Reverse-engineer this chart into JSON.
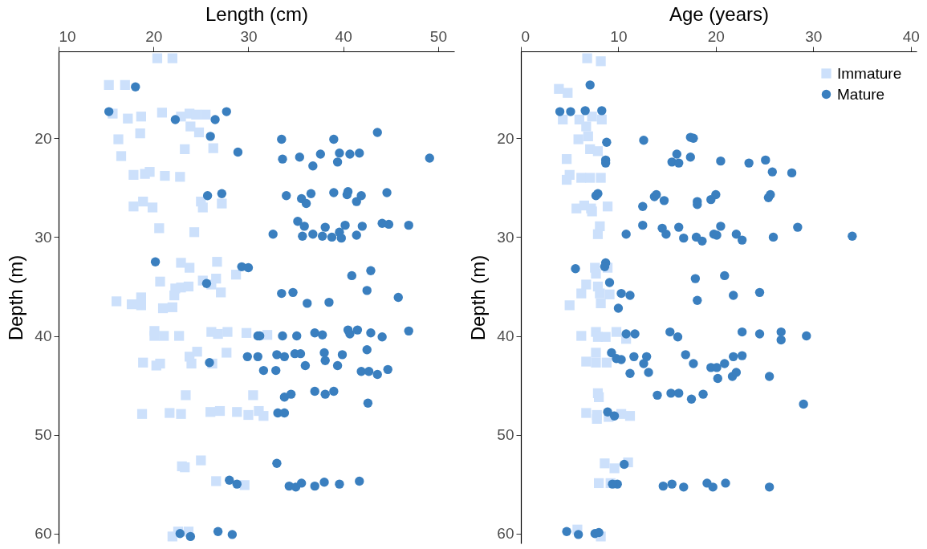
{
  "chart_data": [
    {
      "type": "scatter",
      "xlabel": "Length (cm)",
      "ylabel": "Depth (m)",
      "xlim": [
        10,
        51.7
      ],
      "xticks": [
        10,
        20,
        30,
        40,
        50
      ],
      "ylim": [
        61,
        11.2
      ],
      "yticks": [
        20,
        30,
        40,
        50,
        60
      ],
      "grid": false,
      "series": [
        {
          "color": "#cce0fb",
          "marker": "square",
          "x": [
            20.4,
            22.0,
            15.3,
            17.0,
            15.7,
            17.3,
            18.7,
            20.9,
            22.9,
            23.8,
            24.5,
            25.5,
            16.3,
            18.6,
            23.9,
            24.8,
            16.6,
            23.3,
            26.3,
            17.9,
            19.1,
            19.6,
            21.2,
            22.8,
            17.9,
            18.9,
            19.9,
            25.0,
            25.2,
            27.2,
            20.6,
            24.3,
            22.9,
            23.8,
            26.7,
            28.7,
            20.7,
            25.2,
            26.6,
            26.1,
            27.1,
            22.3,
            22.9,
            23.7,
            22.2,
            16.1,
            17.7,
            18.7,
            18.7,
            21.0,
            22.0,
            20.1,
            20.1,
            21.1,
            22.7,
            26.1,
            26.8,
            27.8,
            29.8,
            32.0,
            18.9,
            20.3,
            20.7,
            23.8,
            24.6,
            24.0,
            27.7,
            26.2,
            23.4,
            30.5,
            18.8,
            21.7,
            22.9,
            26.0,
            27.0,
            28.8,
            30.0,
            31.1,
            31.6,
            25.0,
            23.0,
            23.3,
            26.6,
            29.6,
            22.6,
            23.7,
            22.0
          ],
          "values": [
            11.9,
            11.9,
            14.6,
            14.6,
            17.5,
            18.0,
            17.8,
            17.4,
            17.8,
            17.5,
            17.6,
            17.6,
            20.1,
            19.5,
            18.8,
            19.4,
            21.8,
            21.1,
            21.0,
            23.7,
            23.6,
            23.4,
            23.8,
            23.9,
            26.9,
            26.4,
            27.0,
            26.4,
            27.0,
            26.6,
            29.1,
            29.5,
            32.6,
            33.1,
            32.5,
            33.8,
            34.5,
            34.4,
            34.2,
            34.8,
            35.6,
            35.2,
            35.1,
            35.0,
            35.9,
            36.5,
            36.8,
            36.1,
            36.9,
            37.2,
            37.1,
            39.5,
            40.0,
            40.0,
            40.0,
            39.6,
            39.8,
            39.6,
            39.7,
            39.9,
            42.7,
            43.0,
            42.8,
            42.1,
            41.6,
            42.8,
            41.7,
            42.8,
            46.0,
            46.0,
            47.9,
            47.8,
            47.9,
            47.7,
            47.6,
            47.7,
            48.0,
            47.6,
            48.1,
            52.6,
            53.2,
            53.3,
            54.7,
            55.1,
            59.8,
            59.8,
            60.3
          ]
        },
        {
          "color": "#3a7fbf",
          "marker": "circle",
          "x": [
            18.1,
            15.3,
            22.3,
            26.5,
            27.7,
            26.0,
            33.5,
            39.0,
            43.6,
            28.9,
            33.6,
            35.4,
            37.6,
            36.8,
            39.6,
            39.4,
            40.7,
            41.7,
            49.1,
            25.7,
            27.2,
            34.0,
            35.6,
            36.6,
            36.1,
            39.0,
            40.5,
            40.4,
            41.9,
            41.4,
            44.6,
            35.2,
            35.9,
            38.1,
            40.2,
            42.0,
            44.1,
            44.8,
            46.9,
            32.6,
            35.7,
            36.8,
            37.8,
            38.8,
            39.6,
            39.8,
            41.4,
            20.2,
            29.3,
            30.0,
            25.6,
            40.9,
            42.9,
            42.5,
            45.8,
            33.5,
            34.7,
            36.2,
            38.5,
            31.0,
            31.2,
            33.6,
            35.1,
            37.0,
            37.8,
            40.5,
            40.7,
            41.5,
            42.9,
            44.1,
            46.9,
            25.9,
            29.9,
            31.0,
            33.0,
            33.8,
            34.9,
            35.5,
            38.0,
            39.9,
            42.5,
            36.0,
            38.1,
            39.4,
            31.6,
            32.9,
            41.9,
            42.7,
            43.6,
            44.7,
            33.8,
            34.5,
            37.0,
            38.1,
            39.0,
            42.6,
            33.1,
            33.8,
            33.0,
            28.0,
            28.8,
            34.3,
            35.0,
            35.6,
            37.0,
            38.0,
            39.6,
            41.7,
            22.8,
            23.9,
            26.8,
            28.3
          ],
          "values": [
            14.8,
            17.3,
            18.1,
            18.1,
            17.3,
            19.8,
            20.1,
            20.1,
            19.4,
            21.4,
            22.1,
            21.9,
            21.6,
            22.8,
            21.5,
            22.4,
            21.6,
            21.5,
            22.0,
            25.8,
            25.6,
            25.8,
            26.1,
            25.6,
            26.6,
            25.5,
            25.4,
            25.7,
            25.8,
            26.4,
            25.5,
            28.4,
            28.9,
            29.0,
            28.8,
            28.9,
            28.6,
            28.7,
            28.8,
            29.7,
            29.9,
            29.7,
            29.9,
            30.0,
            29.5,
            30.1,
            29.8,
            32.5,
            33.0,
            33.1,
            34.7,
            33.9,
            33.4,
            35.4,
            36.1,
            35.7,
            35.6,
            36.7,
            36.6,
            40.0,
            40.0,
            40.0,
            40.0,
            39.7,
            39.9,
            39.4,
            39.8,
            39.4,
            39.7,
            40.1,
            39.5,
            42.7,
            42.1,
            42.1,
            41.9,
            42.1,
            41.8,
            41.8,
            41.7,
            41.9,
            41.4,
            43.0,
            42.5,
            43.0,
            43.5,
            43.5,
            43.6,
            43.6,
            43.9,
            43.4,
            46.2,
            45.9,
            45.6,
            45.9,
            45.6,
            46.8,
            47.8,
            47.8,
            52.9,
            54.6,
            55.0,
            55.2,
            55.3,
            54.9,
            55.2,
            54.8,
            55.0,
            54.7,
            60.0,
            60.3,
            59.8,
            60.1
          ]
        }
      ]
    },
    {
      "type": "scatter",
      "xlabel": "Age (years)",
      "ylabel": "Depth (m)",
      "xlim": [
        0,
        40.6
      ],
      "xticks": [
        0,
        10,
        20,
        30,
        40
      ],
      "ylim": [
        61,
        11.2
      ],
      "yticks": [
        20,
        30,
        40,
        50,
        60
      ],
      "grid": false,
      "legend": "top right",
      "series": [
        {
          "name": "Immature",
          "color": "#cce0fb",
          "marker": "square",
          "x": [
            6.8,
            8.2,
            3.9,
            4.8,
            4.3,
            6.0,
            6.7,
            7.3,
            8.3,
            5.9,
            6.9,
            7.1,
            7.9,
            4.7,
            5.0,
            4.7,
            6.2,
            7.1,
            8.2,
            5.7,
            6.5,
            7.2,
            8.9,
            7.3,
            8.1,
            7.9,
            7.6,
            7.7,
            8.9,
            6.7,
            6.2,
            7.9,
            8.1,
            9.1,
            5.0,
            8.2,
            6.2,
            7.7,
            7.9,
            8.7,
            9.8,
            10.8,
            6.7,
            7.7,
            7.7,
            8.8,
            7.9,
            8.0,
            6.7,
            7.8,
            7.8,
            9.0,
            10.3,
            11.2,
            8.6,
            9.6,
            11.0,
            8.0,
            9.2,
            5.8,
            8.2
          ],
          "values": [
            11.9,
            12.2,
            15.0,
            15.4,
            18.1,
            18.1,
            18.8,
            17.8,
            18.1,
            20.1,
            19.8,
            21.1,
            21.3,
            22.1,
            23.7,
            24.2,
            24.0,
            24.0,
            24.0,
            27.1,
            26.8,
            27.1,
            26.9,
            27.4,
            28.9,
            29.7,
            33.1,
            33.7,
            33.1,
            34.8,
            35.7,
            35.0,
            35.7,
            35.8,
            36.9,
            36.7,
            40.0,
            39.6,
            40.1,
            40.1,
            39.6,
            40.3,
            42.6,
            41.7,
            42.7,
            42.7,
            45.8,
            46.2,
            47.8,
            48.0,
            48.4,
            48.2,
            47.9,
            48.1,
            52.9,
            53.4,
            52.8,
            54.9,
            54.9,
            59.6,
            60.3
          ]
        },
        {
          "name": "Mature",
          "color": "#3a7fbf",
          "marker": "circle",
          "x": [
            7.1,
            4.0,
            5.1,
            6.6,
            8.3,
            8.8,
            12.6,
            17.4,
            17.7,
            8.7,
            8.7,
            16.0,
            15.5,
            16.2,
            17.4,
            20.5,
            23.4,
            25.1,
            25.8,
            27.8,
            7.9,
            7.7,
            12.5,
            13.7,
            13.9,
            14.7,
            18.1,
            18.1,
            19.5,
            20.0,
            25.4,
            25.6,
            10.8,
            12.5,
            14.5,
            14.9,
            16.2,
            16.7,
            18.0,
            18.6,
            19.8,
            20.5,
            20.1,
            22.1,
            22.7,
            25.9,
            28.4,
            34.0,
            8.7,
            8.6,
            5.6,
            9.1,
            10.3,
            11.2,
            10.0,
            17.9,
            20.9,
            18.1,
            21.8,
            24.5,
            10.8,
            11.7,
            15.3,
            16.1,
            22.7,
            24.5,
            26.7,
            26.7,
            29.3,
            9.3,
            9.8,
            10.3,
            11.6,
            12.9,
            12.6,
            16.9,
            17.7,
            19.5,
            20.1,
            20.9,
            21.8,
            22.7,
            11.2,
            13.1,
            25.5,
            20.2,
            21.7,
            22.1,
            14.0,
            15.4,
            16.2,
            17.5,
            18.7,
            29.0,
            8.9,
            9.6,
            10.6,
            9.9,
            9.4,
            14.6,
            15.5,
            16.7,
            19.1,
            19.7,
            21.0,
            25.5,
            4.7,
            5.9,
            7.6,
            8.0
          ],
          "values": [
            14.6,
            17.3,
            17.3,
            17.2,
            17.2,
            20.4,
            20.2,
            19.9,
            20.0,
            22.2,
            22.5,
            21.6,
            22.4,
            22.5,
            21.9,
            22.3,
            22.5,
            22.2,
            23.4,
            23.5,
            25.6,
            25.8,
            26.9,
            25.9,
            25.7,
            26.3,
            26.4,
            26.7,
            26.2,
            25.7,
            26.0,
            25.7,
            29.7,
            28.8,
            29.1,
            29.7,
            29.0,
            30.1,
            30.0,
            30.4,
            29.7,
            28.9,
            29.8,
            29.7,
            30.3,
            30.0,
            29.0,
            29.9,
            32.6,
            33.0,
            33.2,
            34.6,
            35.7,
            35.9,
            37.2,
            34.2,
            33.9,
            36.4,
            35.9,
            35.6,
            39.8,
            39.8,
            39.6,
            40.1,
            39.6,
            39.8,
            39.6,
            40.4,
            40.0,
            41.7,
            42.3,
            42.4,
            42.1,
            42.1,
            42.8,
            41.9,
            42.8,
            43.2,
            43.2,
            42.8,
            42.1,
            42.0,
            43.8,
            43.7,
            44.1,
            44.3,
            44.1,
            43.7,
            46.0,
            45.8,
            45.8,
            46.4,
            45.9,
            46.9,
            47.7,
            48.1,
            53.0,
            55.0,
            55.0,
            55.2,
            55.0,
            55.3,
            54.9,
            55.3,
            54.9,
            55.3,
            59.8,
            60.1,
            60.0,
            59.9
          ]
        }
      ]
    }
  ]
}
